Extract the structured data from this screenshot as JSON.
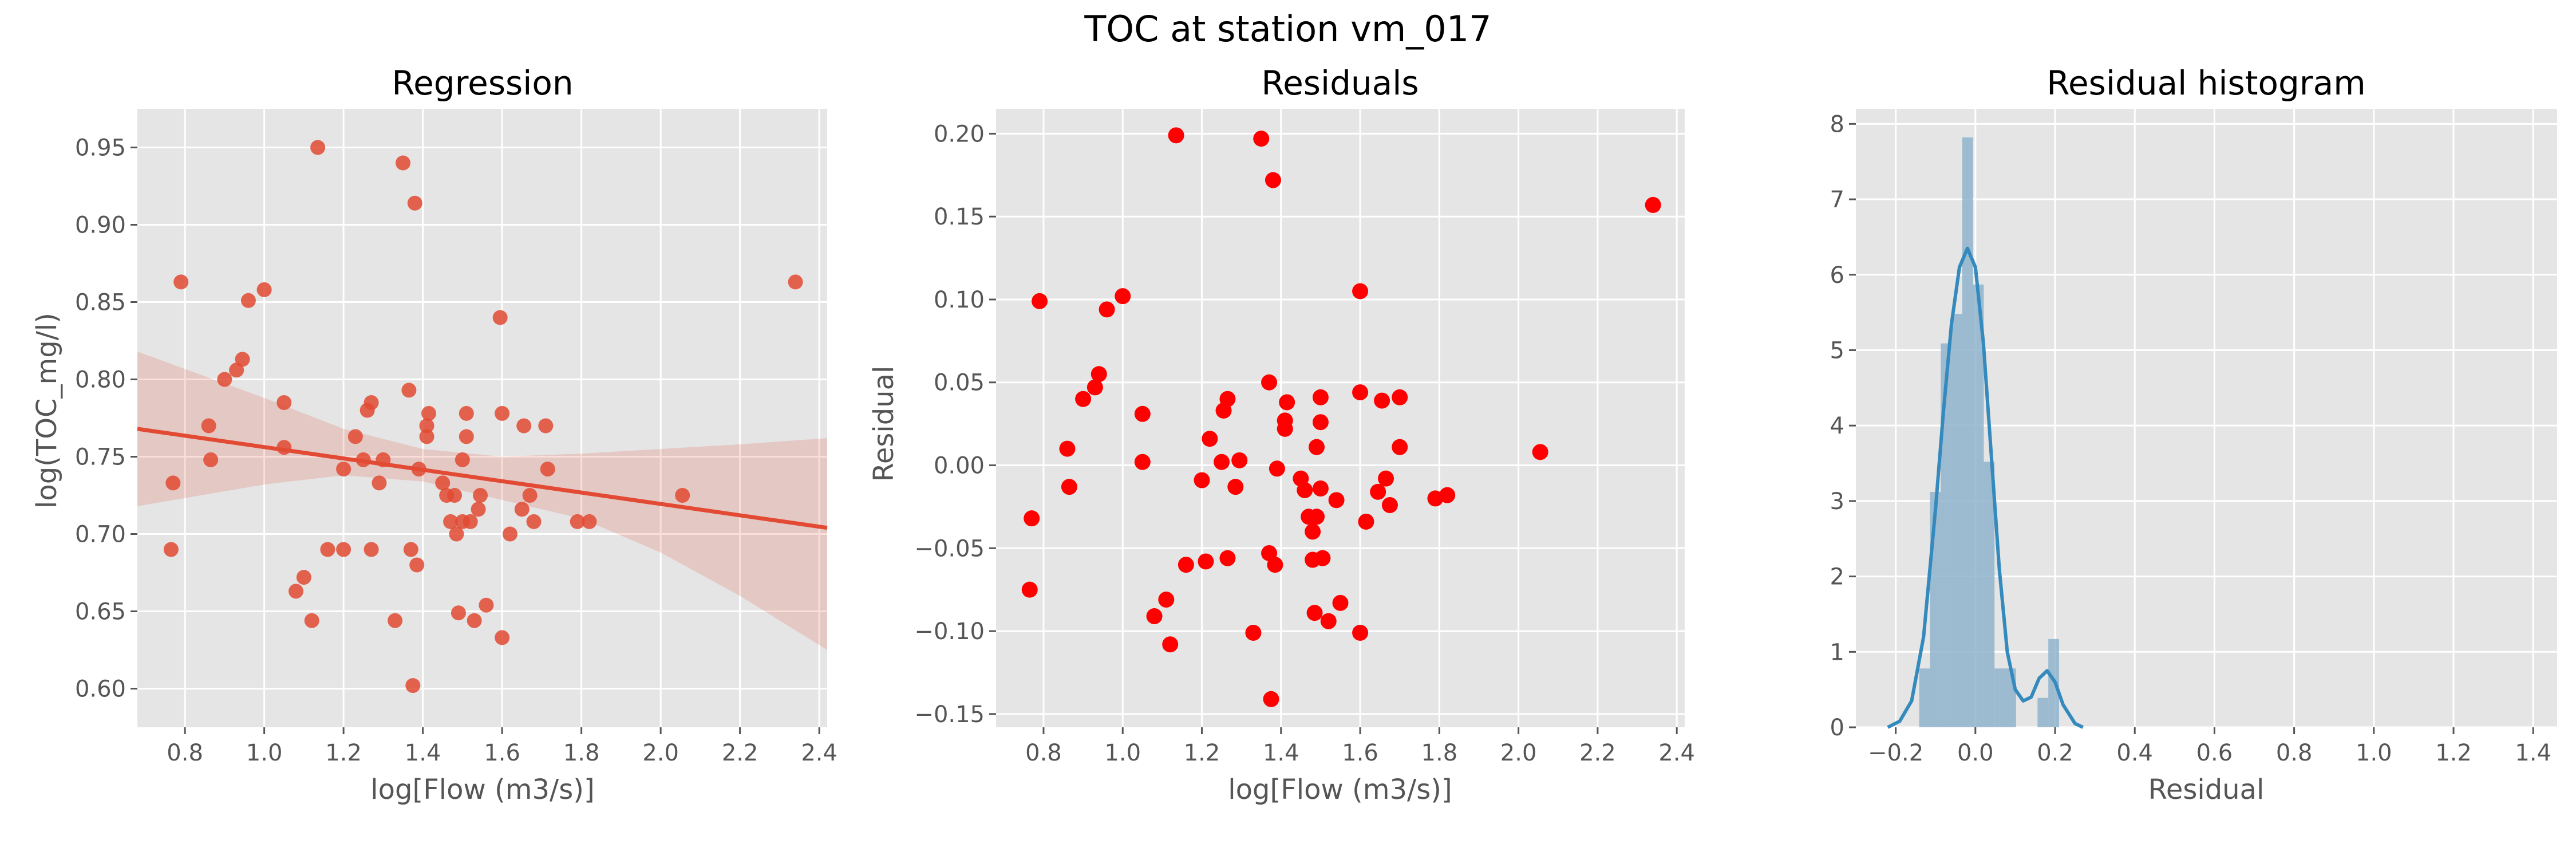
{
  "figure": {
    "suptitle": "TOC at station vm_017"
  },
  "colors": {
    "panel_bg": "#e5e5e5",
    "grid": "#ffffff",
    "regression_points": "#e24a33",
    "regression_line": "#e24a33",
    "confidence_band": "#e24a33",
    "residual_points": "#ff0000",
    "histogram_bars": "#8fb3cd",
    "kde_line": "#348abd",
    "tick_text": "#555555"
  },
  "chart_data": [
    {
      "type": "scatter",
      "title": "Regression",
      "xlabel": "log[Flow (m3/s)]",
      "ylabel": "log(TOC_mg/l)",
      "xlim": [
        0.68,
        2.42
      ],
      "ylim": [
        0.575,
        0.975
      ],
      "xticks": [
        0.8,
        1.0,
        1.2,
        1.4,
        1.6,
        1.8,
        2.0,
        2.2,
        2.4
      ],
      "xtick_labels": [
        "0.8",
        "1.0",
        "1.2",
        "1.4",
        "1.6",
        "1.8",
        "2.0",
        "2.2",
        "2.4"
      ],
      "yticks": [
        0.6,
        0.65,
        0.7,
        0.75,
        0.8,
        0.85,
        0.9,
        0.95
      ],
      "ytick_labels": [
        "0.60",
        "0.65",
        "0.70",
        "0.75",
        "0.80",
        "0.85",
        "0.90",
        "0.95"
      ],
      "grid": true,
      "points": [
        [
          0.765,
          0.69
        ],
        [
          0.77,
          0.733
        ],
        [
          0.79,
          0.863
        ],
        [
          0.86,
          0.77
        ],
        [
          0.865,
          0.748
        ],
        [
          0.9,
          0.8
        ],
        [
          0.93,
          0.806
        ],
        [
          0.945,
          0.813
        ],
        [
          0.96,
          0.851
        ],
        [
          1.0,
          0.858
        ],
        [
          1.05,
          0.785
        ],
        [
          1.05,
          0.756
        ],
        [
          1.08,
          0.663
        ],
        [
          1.1,
          0.672
        ],
        [
          1.12,
          0.644
        ],
        [
          1.135,
          0.95
        ],
        [
          1.16,
          0.69
        ],
        [
          1.2,
          0.742
        ],
        [
          1.2,
          0.69
        ],
        [
          1.23,
          0.763
        ],
        [
          1.25,
          0.748
        ],
        [
          1.26,
          0.78
        ],
        [
          1.27,
          0.785
        ],
        [
          1.27,
          0.69
        ],
        [
          1.29,
          0.733
        ],
        [
          1.3,
          0.748
        ],
        [
          1.33,
          0.644
        ],
        [
          1.35,
          0.94
        ],
        [
          1.365,
          0.793
        ],
        [
          1.37,
          0.69
        ],
        [
          1.375,
          0.602
        ],
        [
          1.38,
          0.914
        ],
        [
          1.385,
          0.68
        ],
        [
          1.39,
          0.742
        ],
        [
          1.41,
          0.77
        ],
        [
          1.415,
          0.778
        ],
        [
          1.41,
          0.763
        ],
        [
          1.45,
          0.733
        ],
        [
          1.46,
          0.725
        ],
        [
          1.47,
          0.708
        ],
        [
          1.48,
          0.725
        ],
        [
          1.485,
          0.7
        ],
        [
          1.49,
          0.649
        ],
        [
          1.5,
          0.708
        ],
        [
          1.5,
          0.748
        ],
        [
          1.51,
          0.778
        ],
        [
          1.51,
          0.763
        ],
        [
          1.52,
          0.708
        ],
        [
          1.53,
          0.644
        ],
        [
          1.54,
          0.716
        ],
        [
          1.545,
          0.725
        ],
        [
          1.56,
          0.654
        ],
        [
          1.595,
          0.84
        ],
        [
          1.6,
          0.778
        ],
        [
          1.6,
          0.633
        ],
        [
          1.62,
          0.7
        ],
        [
          1.65,
          0.716
        ],
        [
          1.655,
          0.77
        ],
        [
          1.67,
          0.725
        ],
        [
          1.68,
          0.708
        ],
        [
          1.71,
          0.77
        ],
        [
          1.715,
          0.742
        ],
        [
          1.79,
          0.708
        ],
        [
          1.82,
          0.708
        ],
        [
          2.055,
          0.725
        ],
        [
          2.34,
          0.863
        ]
      ],
      "fit_line": {
        "x": [
          0.68,
          2.42
        ],
        "y": [
          0.768,
          0.704
        ]
      },
      "confidence_band": {
        "x": [
          0.68,
          1.0,
          1.2,
          1.4,
          1.6,
          1.8,
          2.0,
          2.2,
          2.42
        ],
        "upper": [
          0.818,
          0.788,
          0.768,
          0.755,
          0.75,
          0.752,
          0.755,
          0.758,
          0.762
        ],
        "lower": [
          0.718,
          0.732,
          0.738,
          0.734,
          0.722,
          0.71,
          0.688,
          0.66,
          0.625
        ]
      }
    },
    {
      "type": "scatter",
      "title": "Residuals",
      "xlabel": "log[Flow (m3/s)]",
      "ylabel": "Residual",
      "xlim": [
        0.68,
        2.42
      ],
      "ylim": [
        -0.158,
        0.215
      ],
      "xticks": [
        0.8,
        1.0,
        1.2,
        1.4,
        1.6,
        1.8,
        2.0,
        2.2,
        2.4
      ],
      "xtick_labels": [
        "0.8",
        "1.0",
        "1.2",
        "1.4",
        "1.6",
        "1.8",
        "2.0",
        "2.2",
        "2.4"
      ],
      "yticks": [
        -0.15,
        -0.1,
        -0.05,
        0.0,
        0.05,
        0.1,
        0.15,
        0.2
      ],
      "ytick_labels": [
        "−0.15",
        "−0.10",
        "−0.05",
        "0.00",
        "0.05",
        "0.10",
        "0.15",
        "0.20"
      ],
      "grid": true,
      "points": [
        [
          0.765,
          -0.075
        ],
        [
          0.77,
          -0.032
        ],
        [
          0.79,
          0.099
        ],
        [
          0.86,
          0.01
        ],
        [
          0.865,
          -0.013
        ],
        [
          0.9,
          0.04
        ],
        [
          0.93,
          0.047
        ],
        [
          0.94,
          0.055
        ],
        [
          0.96,
          0.094
        ],
        [
          1.0,
          0.102
        ],
        [
          1.05,
          0.031
        ],
        [
          1.05,
          0.002
        ],
        [
          1.08,
          -0.091
        ],
        [
          1.11,
          -0.081
        ],
        [
          1.12,
          -0.108
        ],
        [
          1.135,
          0.199
        ],
        [
          1.16,
          -0.06
        ],
        [
          1.2,
          -0.009
        ],
        [
          1.21,
          -0.058
        ],
        [
          1.22,
          0.016
        ],
        [
          1.25,
          0.002
        ],
        [
          1.255,
          0.033
        ],
        [
          1.265,
          0.04
        ],
        [
          1.265,
          -0.056
        ],
        [
          1.285,
          -0.013
        ],
        [
          1.295,
          0.003
        ],
        [
          1.33,
          -0.101
        ],
        [
          1.35,
          0.197
        ],
        [
          1.37,
          0.05
        ],
        [
          1.37,
          -0.053
        ],
        [
          1.375,
          -0.141
        ],
        [
          1.38,
          0.172
        ],
        [
          1.385,
          -0.06
        ],
        [
          1.39,
          -0.002
        ],
        [
          1.41,
          0.027
        ],
        [
          1.415,
          0.038
        ],
        [
          1.41,
          0.022
        ],
        [
          1.45,
          -0.008
        ],
        [
          1.46,
          -0.015
        ],
        [
          1.47,
          -0.031
        ],
        [
          1.48,
          -0.04
        ],
        [
          1.48,
          -0.057
        ],
        [
          1.485,
          -0.089
        ],
        [
          1.49,
          -0.031
        ],
        [
          1.49,
          0.011
        ],
        [
          1.5,
          0.041
        ],
        [
          1.5,
          0.026
        ],
        [
          1.5,
          -0.014
        ],
        [
          1.505,
          -0.056
        ],
        [
          1.52,
          -0.094
        ],
        [
          1.54,
          -0.021
        ],
        [
          1.55,
          -0.083
        ],
        [
          1.6,
          0.105
        ],
        [
          1.6,
          0.044
        ],
        [
          1.6,
          -0.101
        ],
        [
          1.615,
          -0.034
        ],
        [
          1.645,
          -0.016
        ],
        [
          1.655,
          0.039
        ],
        [
          1.665,
          -0.008
        ],
        [
          1.675,
          -0.024
        ],
        [
          1.7,
          0.041
        ],
        [
          1.7,
          0.011
        ],
        [
          1.79,
          -0.02
        ],
        [
          1.82,
          -0.018
        ],
        [
          2.055,
          0.008
        ],
        [
          2.34,
          0.157
        ]
      ]
    },
    {
      "type": "bar",
      "title": "Residual histogram",
      "xlabel": "Residual",
      "ylabel": "",
      "xlim": [
        -0.3,
        1.46
      ],
      "ylim": [
        0,
        8.2
      ],
      "xticks": [
        -0.2,
        0.0,
        0.2,
        0.4,
        0.6,
        0.8,
        1.0,
        1.2,
        1.4
      ],
      "xtick_labels": [
        "−0.2",
        "0.0",
        "0.2",
        "0.4",
        "0.6",
        "0.8",
        "1.0",
        "1.2",
        "1.4"
      ],
      "yticks": [
        0,
        1,
        2,
        3,
        4,
        5,
        6,
        7,
        8
      ],
      "ytick_labels": [
        "0",
        "1",
        "2",
        "3",
        "4",
        "5",
        "6",
        "7",
        "8"
      ],
      "grid": true,
      "bins": [
        {
          "x0": -0.141,
          "x1": -0.114,
          "value": 0.78
        },
        {
          "x0": -0.114,
          "x1": -0.087,
          "value": 3.12
        },
        {
          "x0": -0.087,
          "x1": -0.06,
          "value": 5.09
        },
        {
          "x0": -0.06,
          "x1": -0.033,
          "value": 5.48
        },
        {
          "x0": -0.033,
          "x1": -0.006,
          "value": 7.82
        },
        {
          "x0": -0.006,
          "x1": 0.021,
          "value": 5.87
        },
        {
          "x0": 0.021,
          "x1": 0.048,
          "value": 3.52
        },
        {
          "x0": 0.048,
          "x1": 0.075,
          "value": 0.78
        },
        {
          "x0": 0.075,
          "x1": 0.102,
          "value": 0.78
        },
        {
          "x0": 0.102,
          "x1": 0.129,
          "value": 0.0
        },
        {
          "x0": 0.129,
          "x1": 0.156,
          "value": 0.0
        },
        {
          "x0": 0.156,
          "x1": 0.183,
          "value": 0.39
        },
        {
          "x0": 0.183,
          "x1": 0.21,
          "value": 1.17
        }
      ],
      "kde": {
        "x": [
          -0.22,
          -0.19,
          -0.16,
          -0.13,
          -0.1,
          -0.08,
          -0.06,
          -0.04,
          -0.02,
          0.0,
          0.02,
          0.04,
          0.06,
          0.08,
          0.1,
          0.12,
          0.14,
          0.16,
          0.18,
          0.2,
          0.22,
          0.25,
          0.27
        ],
        "y": [
          0.0,
          0.08,
          0.35,
          1.2,
          2.9,
          4.2,
          5.35,
          6.1,
          6.35,
          6.1,
          5.1,
          3.6,
          2.1,
          1.0,
          0.5,
          0.35,
          0.4,
          0.65,
          0.75,
          0.6,
          0.3,
          0.05,
          0.0
        ]
      }
    }
  ]
}
